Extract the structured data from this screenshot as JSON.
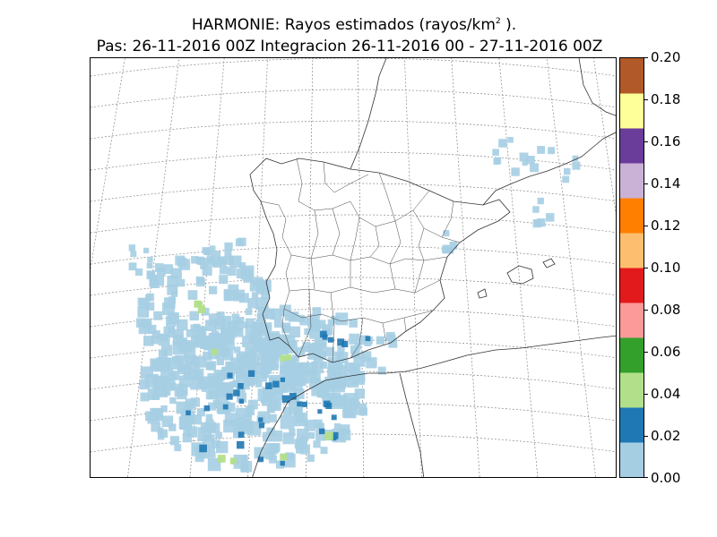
{
  "title": {
    "line1_prefix": "HARMONIE: Rayos estimados  (rayos/km",
    "line1_sup": "2",
    "line1_suffix": " ).",
    "line2": "Pas: 26-11-2016 00Z Integracion 26-11-2016 00 - 27-11-2016 00Z"
  },
  "colorbar": {
    "ticks": [
      "0.00",
      "0.02",
      "0.04",
      "0.06",
      "0.08",
      "0.10",
      "0.12",
      "0.14",
      "0.16",
      "0.18",
      "0.20"
    ],
    "range": [
      0.0,
      0.2
    ],
    "colors": [
      "#a6cee3",
      "#1f78b4",
      "#b2df8a",
      "#33a02c",
      "#fb9a99",
      "#e31a1c",
      "#fdbf6f",
      "#ff7f00",
      "#cab2d6",
      "#6a3d9a",
      "#ffff99",
      "#b15928"
    ]
  },
  "map": {
    "region": "Iberian Peninsula",
    "graticule": "dotted",
    "field_colors": {
      "low": "#a6cee3",
      "mid": "#1f78b4",
      "high": "#b2df8a"
    }
  }
}
